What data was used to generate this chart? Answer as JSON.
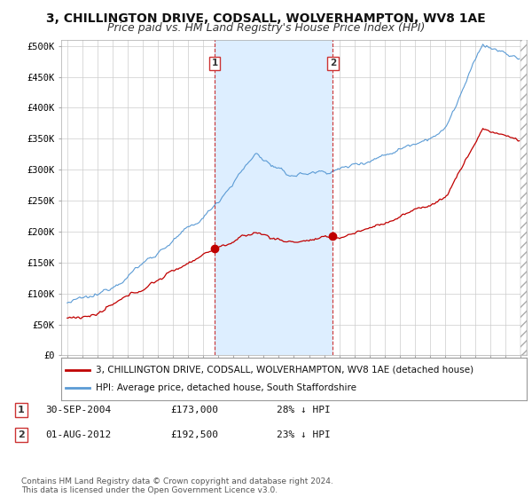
{
  "title": "3, CHILLINGTON DRIVE, CODSALL, WOLVERHAMPTON, WV8 1AE",
  "subtitle": "Price paid vs. HM Land Registry's House Price Index (HPI)",
  "ylabel_ticks": [
    0,
    50000,
    100000,
    150000,
    200000,
    250000,
    300000,
    350000,
    400000,
    450000,
    500000
  ],
  "ylabel_labels": [
    "£0",
    "£50K",
    "£100K",
    "£150K",
    "£200K",
    "£250K",
    "£300K",
    "£350K",
    "£400K",
    "£450K",
    "£500K"
  ],
  "ylim": [
    0,
    510000
  ],
  "xlim_start": 1994.6,
  "xlim_end": 2025.4,
  "hpi_color": "#5b9bd5",
  "property_color": "#c00000",
  "marker_color": "#c00000",
  "dashed_line_color": "#c00000",
  "shade_color": "#ddeeff",
  "background_color": "#ffffff",
  "plot_bg_color": "#ffffff",
  "grid_color": "#cccccc",
  "point1_x_year": 2004.75,
  "point1_y": 173000,
  "point2_x_year": 2012.58,
  "point2_y": 192500,
  "legend_line1": "3, CHILLINGTON DRIVE, CODSALL, WOLVERHAMPTON, WV8 1AE (detached house)",
  "legend_line2": "HPI: Average price, detached house, South Staffordshire",
  "footnote": "Contains HM Land Registry data © Crown copyright and database right 2024.\nThis data is licensed under the Open Government Licence v3.0.",
  "title_fontsize": 10,
  "subtitle_fontsize": 9,
  "tick_fontsize": 7.5,
  "legend_fontsize": 7.5,
  "annotation_fontsize": 8,
  "footnote_fontsize": 6.5
}
